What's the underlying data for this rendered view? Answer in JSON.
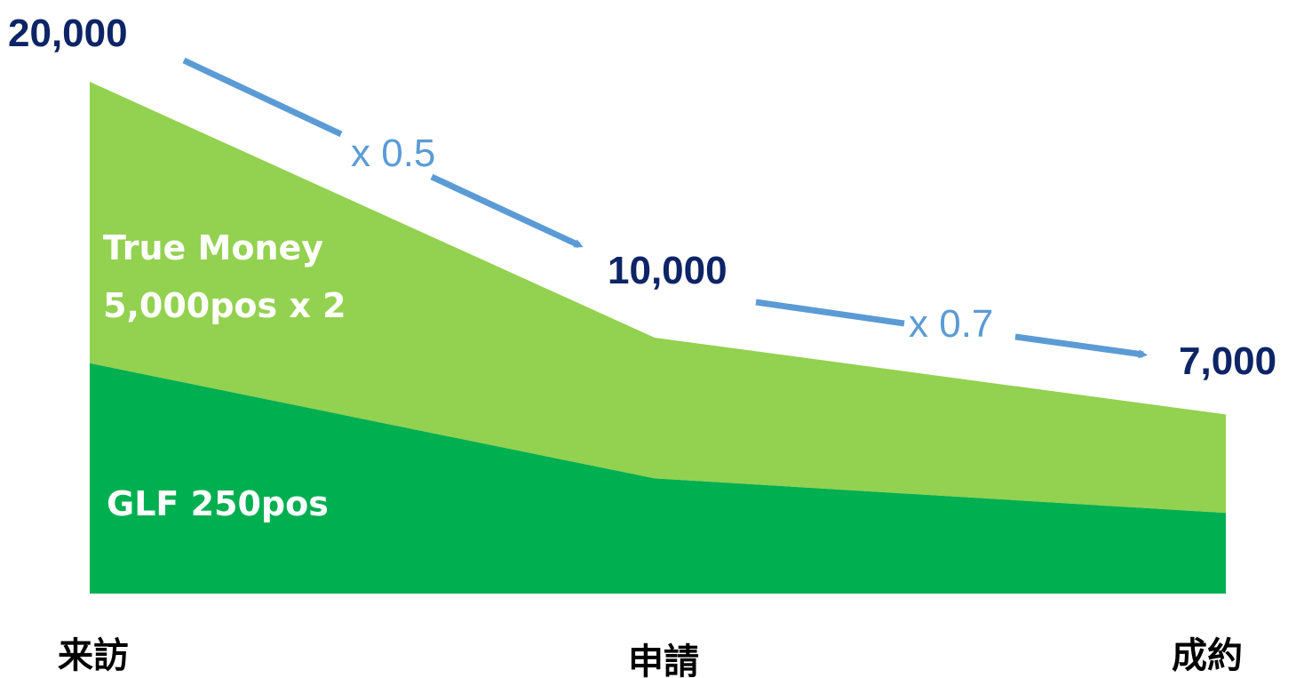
{
  "chart_data": {
    "type": "area",
    "stacked": true,
    "categories": [
      "来訪",
      "申請",
      "成約"
    ],
    "series": [
      {
        "name": "GLF 250pos",
        "values": [
          9000,
          4500,
          3150
        ]
      },
      {
        "name": "True Money 5,000pos x 2",
        "values": [
          11000,
          5500,
          3850
        ]
      }
    ],
    "totals": [
      "20,000",
      "10,000",
      "7,000"
    ],
    "total_values": [
      20000,
      10000,
      7000
    ],
    "conversions": [
      "x 0.5",
      "x 0.7"
    ],
    "ylim": [
      0,
      20000
    ],
    "grid": false,
    "legend": "none"
  },
  "labels": {
    "true_money_line1": "True Money",
    "true_money_line2": "5,000pos x 2",
    "glf": "GLF 250pos"
  },
  "colors": {
    "glf": "#00AF4F",
    "true_money": "#93D150",
    "arrow": "#5B9BD5",
    "total_text": "#0D2566",
    "factor_text": "#5B9BD5",
    "series_text": "#FFFFFF",
    "category_text": "#000000"
  }
}
